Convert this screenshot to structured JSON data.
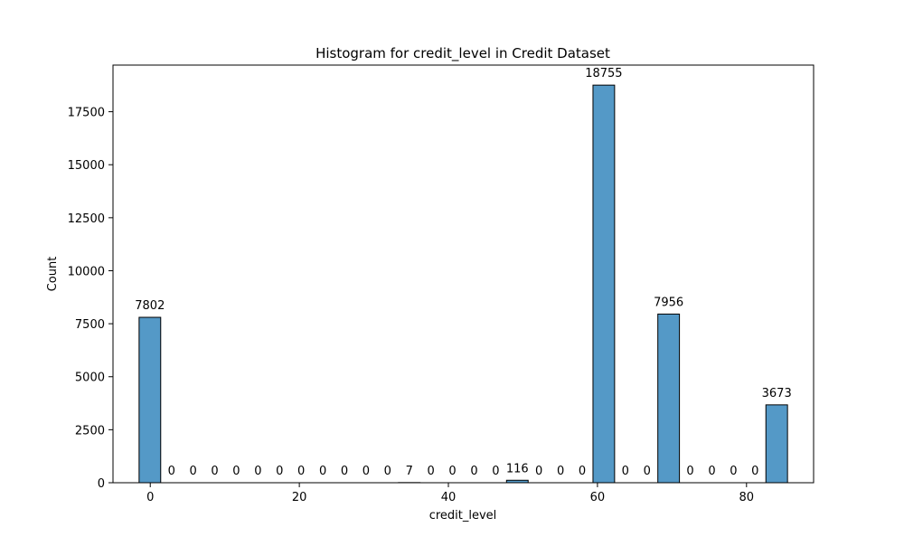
{
  "chart_data": {
    "type": "bar",
    "title": "Histogram for credit_level in Credit Dataset",
    "xlabel": "credit_level",
    "ylabel": "Count",
    "xlim": [
      -5,
      89
    ],
    "ylim": [
      0,
      19700
    ],
    "xticks": [
      0,
      20,
      40,
      60,
      80
    ],
    "yticks": [
      0,
      2500,
      5000,
      7500,
      10000,
      12500,
      15000,
      17500
    ],
    "bin_edges": [
      -1.5,
      1.4,
      4.3,
      7.2,
      10.1,
      13.0,
      15.9,
      18.8,
      21.7,
      24.6,
      27.5,
      30.4,
      33.3,
      36.2,
      39.1,
      42.0,
      44.9,
      47.8,
      50.7,
      53.6,
      56.5,
      59.4,
      62.3,
      65.2,
      68.1,
      71.0,
      73.9,
      76.8,
      79.7,
      82.6,
      85.5
    ],
    "values": [
      7802,
      0,
      0,
      0,
      0,
      0,
      0,
      0,
      0,
      0,
      0,
      0,
      7,
      0,
      0,
      0,
      0,
      116,
      0,
      0,
      0,
      18755,
      0,
      0,
      7956,
      0,
      0,
      0,
      0,
      3673
    ],
    "bar_color": "#5499c7",
    "edge_color": "#000000",
    "grid": false,
    "legend": false
  }
}
